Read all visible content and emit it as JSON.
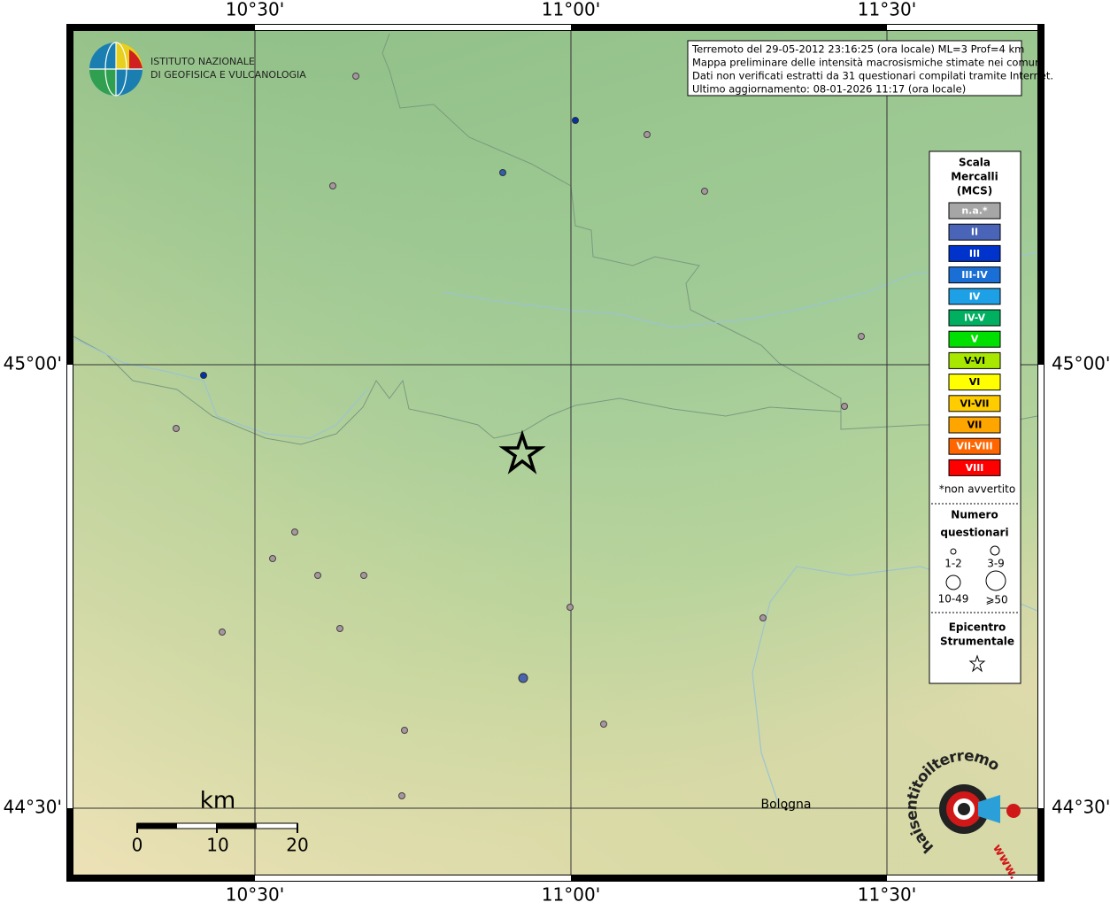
{
  "axis_labels": {
    "top": [
      "10°30'",
      "11°00'",
      "11°30'"
    ],
    "bottom": [
      "10°30'",
      "11°00'",
      "11°30'"
    ],
    "left": [
      "45°00'",
      "44°30'"
    ],
    "right": [
      "45°00'",
      "44°30'"
    ]
  },
  "logo": {
    "line1": "ISTITUTO NAZIONALE",
    "line2": "DI GEOFISICA E VULCANOLOGIA"
  },
  "info_box": {
    "lines": [
      "Terremoto del 29-05-2012 23:16:25 (ora locale) ML=3 Prof=4 km",
      "Mappa preliminare delle intensità macrosismiche stimate nei comuni",
      "Dati non verificati estratti da 31 questionari compilati tramite Internet.",
      "Ultimo aggiornamento: 08-01-2026 11:17 (ora locale)"
    ]
  },
  "legend": {
    "title": [
      "Scala",
      "Mercalli",
      "(MCS)"
    ],
    "items": [
      {
        "label": "n.a.*",
        "color": "#a6a6a6"
      },
      {
        "label": "II",
        "color": "#4a64b8"
      },
      {
        "label": "III",
        "color": "#0033cc"
      },
      {
        "label": "III-IV",
        "color": "#1a6fd6"
      },
      {
        "label": "IV",
        "color": "#1ea0e6"
      },
      {
        "label": "IV-V",
        "color": "#00b060"
      },
      {
        "label": "V",
        "color": "#00e000"
      },
      {
        "label": "V-VI",
        "color": "#a8e800"
      },
      {
        "label": "VI",
        "color": "#ffff00"
      },
      {
        "label": "VI-VII",
        "color": "#ffcc00"
      },
      {
        "label": "VII",
        "color": "#ffa500"
      },
      {
        "label": "VII-VIII",
        "color": "#ff6600"
      },
      {
        "label": "VIII",
        "color": "#ff0000"
      }
    ],
    "note": "*non avvertito",
    "count_title": [
      "Numero",
      "questionari"
    ],
    "count_sizes": [
      "1-2",
      "3-9",
      "10-49",
      "⩾50"
    ],
    "epicenter_title": [
      "Epicentro",
      "Strumentale"
    ]
  },
  "scale_bar": {
    "unit": "km",
    "labels": [
      "0",
      "10",
      "20"
    ]
  },
  "places": {
    "bologna": "Bologna"
  },
  "haisentito": {
    "text": "haisentitoilterremoto.it",
    "www": "www."
  }
}
